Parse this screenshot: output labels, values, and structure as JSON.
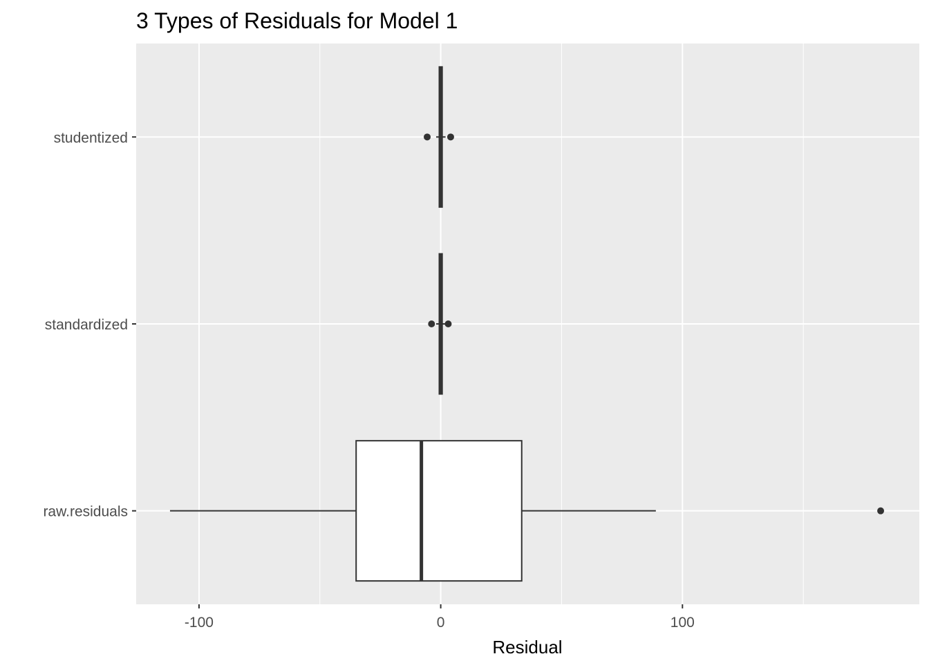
{
  "chart_data": {
    "type": "boxplot",
    "orientation": "horizontal",
    "title": "3 Types of Residuals for Model 1",
    "xlabel": "Residual",
    "ylabel": "",
    "xlim": [
      -126,
      198
    ],
    "x_ticks": [
      -100,
      0,
      100
    ],
    "x_tick_labels": [
      "-100",
      "0",
      "100"
    ],
    "x_minor_ticks": [
      -50,
      50,
      150
    ],
    "grid": true,
    "legend": "none",
    "colors": {
      "panel_background": "#ebebeb",
      "grid": "#ffffff",
      "box_fill": "#ffffff",
      "box_line": "#333333",
      "point": "#333333"
    },
    "categories": [
      "studentized",
      "standardized",
      "raw.residuals"
    ],
    "boxes": [
      {
        "category": "studentized",
        "whisker_low": -1.9,
        "q1": -0.6,
        "median": 0.0,
        "q3": 0.6,
        "whisker_high": 2.0,
        "outliers": [
          -5.6,
          4.1
        ]
      },
      {
        "category": "standardized",
        "whisker_low": -1.9,
        "q1": -0.6,
        "median": 0.0,
        "q3": 0.6,
        "whisker_high": 2.0,
        "outliers": [
          -3.8,
          3.1
        ]
      },
      {
        "category": "raw.residuals",
        "whisker_low": -112,
        "q1": -35,
        "median": -8,
        "q3": 33.5,
        "whisker_high": 89,
        "outliers": [
          182
        ]
      }
    ]
  }
}
